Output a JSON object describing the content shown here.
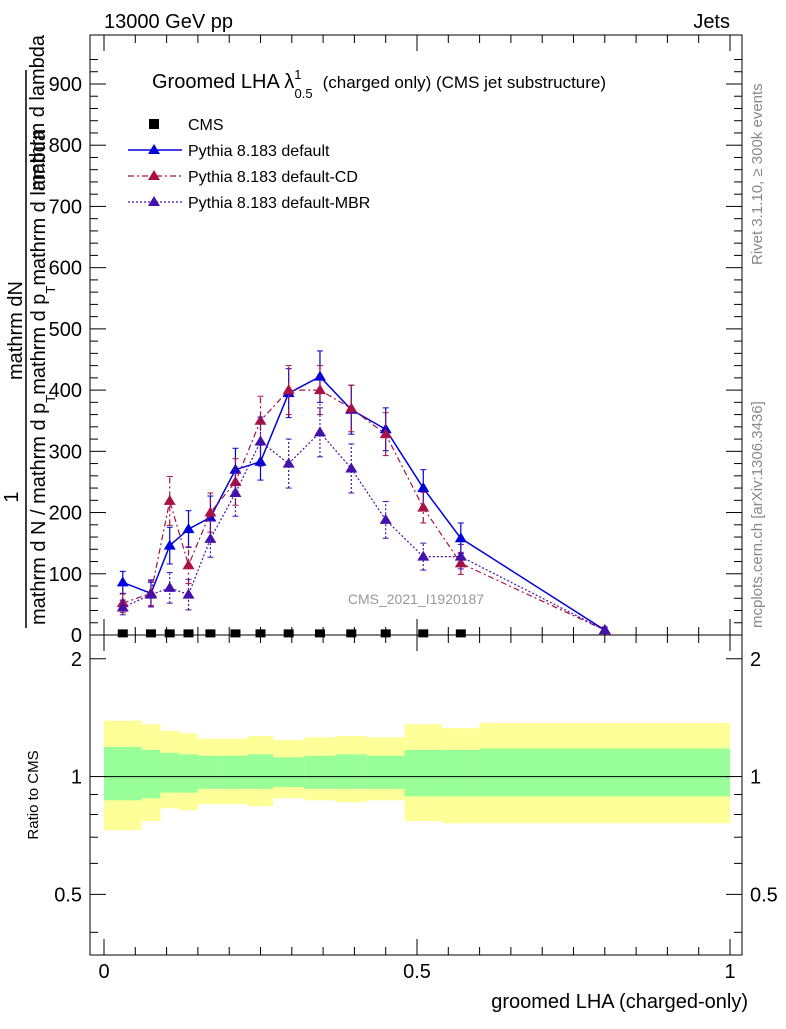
{
  "header": {
    "left": "13000 GeV pp",
    "right": "Jets"
  },
  "side": {
    "rivet": "Rivet 3.1.10, ≥ 300k events",
    "mcplots": "mcplots.cern.ch [arXiv:1306.3436]"
  },
  "colors": {
    "cms": "#000000",
    "default": "#0000dd",
    "cd": "#aa1144",
    "mbr": "#4411aa",
    "band_outer": "#ffff99",
    "band_inner": "#99ff99"
  },
  "chart_data": [
    {
      "type": "line",
      "title": "Groomed LHA λ¹₀.₅ (charged only) (CMS jet substructure)",
      "title_main": "Groomed LHA λ",
      "title_sup": "1",
      "title_sub": "0.5",
      "title_rest": "(charged only) (CMS jet substructure)",
      "ylabel_numerator": "1",
      "ylabel_denominator": "mathrm d N / mathrm d p_T mathrm d p_T mathrm d lambda",
      "ylabel_top": "mathrm dN",
      "ylabel_bottom_line1": "mathrm d N / mathrm d p",
      "ylabel_bottom_sub1": "T",
      "ylabel_bottom_mid": "mathrm d p",
      "ylabel_bottom_sub2": "T",
      "ylabel_bottom_end": "mathrm d lambda",
      "watermark": "CMS_2021_I1920187",
      "xlim": [
        0,
        1
      ],
      "ylim": [
        0,
        980
      ],
      "yticks": [
        0,
        100,
        200,
        300,
        400,
        500,
        600,
        700,
        800,
        900
      ],
      "ytick_labels": [
        "0",
        "100",
        "200",
        "300",
        "400",
        "500",
        "600",
        "700",
        "800",
        "900"
      ],
      "legend": [
        "CMS",
        "Pythia 8.183 default",
        "Pythia 8.183 default-CD",
        "Pythia 8.183 default-MBR"
      ],
      "series": [
        {
          "name": "CMS",
          "style": "marker",
          "x": [
            0.03,
            0.075,
            0.105,
            0.135,
            0.17,
            0.21,
            0.25,
            0.295,
            0.345,
            0.395,
            0.45,
            0.51,
            0.57
          ],
          "y": [
            1,
            1,
            1,
            1,
            1,
            1,
            1,
            1,
            1,
            1,
            1,
            1,
            1
          ]
        },
        {
          "name": "Pythia 8.183 default",
          "style": "solid",
          "x": [
            0.03,
            0.075,
            0.105,
            0.135,
            0.17,
            0.21,
            0.25,
            0.295,
            0.345,
            0.395,
            0.45,
            0.51,
            0.57,
            0.8
          ],
          "y": [
            86,
            68,
            146,
            173,
            192,
            270,
            283,
            395,
            422,
            368,
            336,
            240,
            158,
            8
          ],
          "err": [
            18,
            22,
            30,
            30,
            35,
            35,
            30,
            40,
            42,
            40,
            35,
            30,
            25,
            5
          ]
        },
        {
          "name": "Pythia 8.183 default-CD",
          "style": "dashdot",
          "x": [
            0.03,
            0.075,
            0.105,
            0.135,
            0.17,
            0.21,
            0.25,
            0.295,
            0.345,
            0.395,
            0.45,
            0.51,
            0.57,
            0.8
          ],
          "y": [
            52,
            68,
            219,
            114,
            200,
            250,
            350,
            400,
            400,
            370,
            328,
            208,
            117,
            8
          ],
          "err": [
            15,
            20,
            40,
            30,
            32,
            38,
            40,
            40,
            40,
            38,
            35,
            25,
            18,
            5
          ]
        },
        {
          "name": "Pythia 8.183 default-MBR",
          "style": "dotted",
          "x": [
            0.03,
            0.075,
            0.105,
            0.135,
            0.17,
            0.21,
            0.25,
            0.295,
            0.345,
            0.395,
            0.45,
            0.51,
            0.57,
            0.8
          ],
          "y": [
            45,
            66,
            77,
            66,
            157,
            232,
            316,
            280,
            331,
            272,
            188,
            128,
            128,
            8
          ],
          "err": [
            12,
            20,
            25,
            25,
            30,
            38,
            40,
            40,
            40,
            40,
            30,
            22,
            20,
            5
          ]
        }
      ]
    },
    {
      "type": "area",
      "ylabel": "Ratio to CMS",
      "xlabel": "groomed LHA (charged-only)",
      "xlim": [
        0,
        1
      ],
      "ylim": [
        0.35,
        2.3
      ],
      "yscale": "log",
      "yticks": [
        0.5,
        1,
        2
      ],
      "ytick_labels": [
        "0.5",
        "1",
        "2"
      ],
      "xticks": [
        0,
        0.5,
        1
      ],
      "xtick_labels": [
        "0",
        "0.5",
        "1"
      ],
      "bins": [
        0,
        0.06,
        0.09,
        0.12,
        0.15,
        0.19,
        0.23,
        0.27,
        0.32,
        0.37,
        0.42,
        0.48,
        0.54,
        0.6,
        1.0
      ],
      "outer_lo": [
        0.73,
        0.77,
        0.83,
        0.82,
        0.85,
        0.85,
        0.84,
        0.88,
        0.87,
        0.86,
        0.87,
        0.77,
        0.76,
        0.76
      ],
      "outer_hi": [
        1.39,
        1.36,
        1.31,
        1.29,
        1.25,
        1.25,
        1.27,
        1.24,
        1.26,
        1.27,
        1.26,
        1.36,
        1.33,
        1.37
      ],
      "inner_lo": [
        0.87,
        0.88,
        0.91,
        0.91,
        0.93,
        0.93,
        0.93,
        0.94,
        0.93,
        0.93,
        0.93,
        0.89,
        0.89,
        0.89
      ],
      "inner_hi": [
        1.19,
        1.17,
        1.15,
        1.14,
        1.13,
        1.13,
        1.14,
        1.12,
        1.13,
        1.14,
        1.13,
        1.17,
        1.17,
        1.18
      ]
    }
  ]
}
